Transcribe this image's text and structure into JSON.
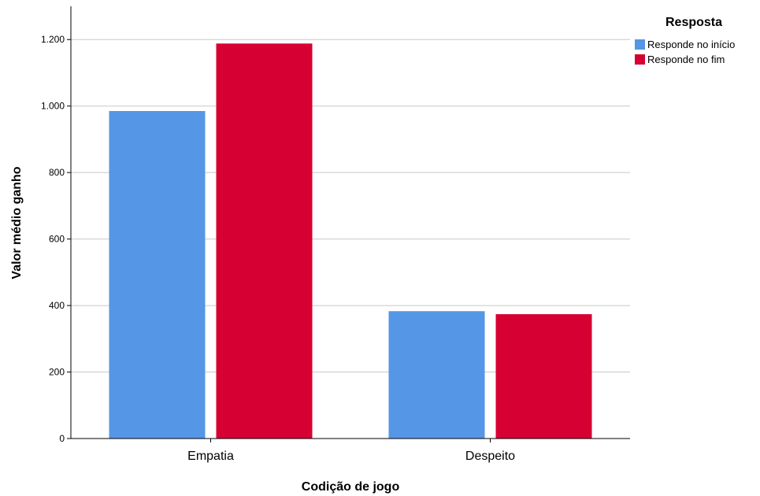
{
  "chart_data": {
    "type": "bar",
    "categories": [
      "Empatia",
      "Despeito"
    ],
    "series": [
      {
        "name": "Responde no início",
        "color": "#5596e6",
        "values": [
          985,
          383
        ]
      },
      {
        "name": "Responde no fim",
        "color": "#d70032",
        "values": [
          1188,
          374
        ]
      }
    ],
    "xlabel": "Codição de jogo",
    "ylabel": "Valor médio ganho",
    "ylim": [
      0,
      1300
    ],
    "yticks": [
      0,
      200,
      400,
      600,
      800,
      1000,
      1200
    ],
    "ytick_labels": [
      "0",
      "200",
      "400",
      "600",
      "800",
      "1.000",
      "1.200"
    ],
    "grid": true,
    "legend": {
      "title": "Resposta",
      "placement": "top-right"
    }
  }
}
